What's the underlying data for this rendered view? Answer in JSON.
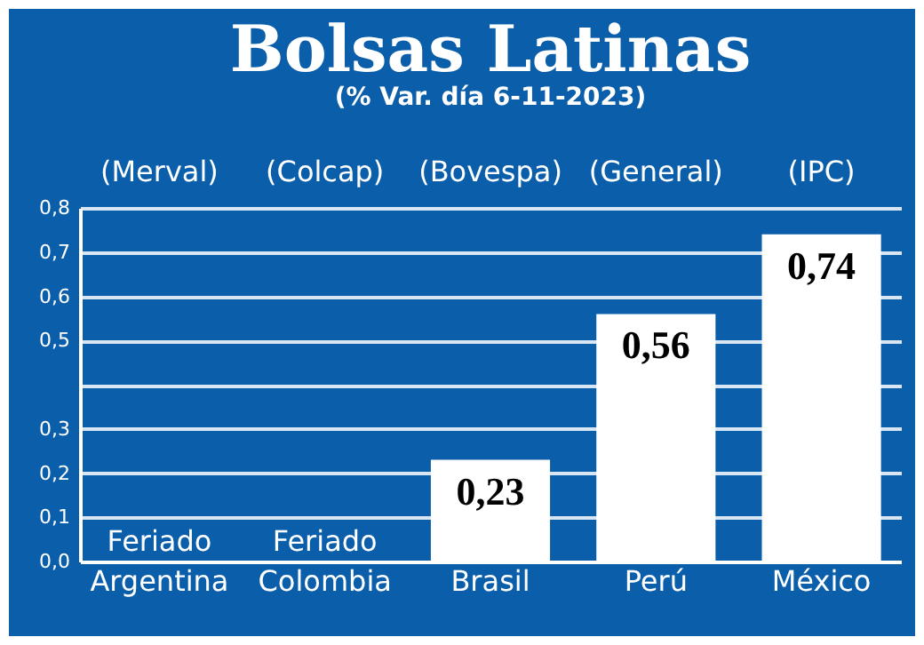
{
  "chart_data": {
    "type": "bar",
    "title": "Bolsas Latinas",
    "subtitle": "(% Var. día  6-11-2023)",
    "categories": [
      "Argentina",
      "Colombia",
      "Brasil",
      "Perú",
      "México"
    ],
    "values": [
      null,
      null,
      0.23,
      0.56,
      0.74
    ],
    "value_labels": [
      "Feriado",
      "Feriado",
      "0,23",
      "0,56",
      "0,74"
    ],
    "color": "#ffffff",
    "ylim": [
      0,
      0.8
    ],
    "yticks": [
      {
        "value": 0,
        "label": "0,0"
      },
      {
        "value": 0.1,
        "label": "0,1"
      },
      {
        "value": 0.2,
        "label": "0,2"
      },
      {
        "value": 0.3,
        "label": "0,3"
      },
      {
        "value": 0.4,
        "label": null
      },
      {
        "value": 0.5,
        "label": "0,5"
      },
      {
        "value": 0.6,
        "label": "0,6"
      },
      {
        "value": 0.7,
        "label": "0,7"
      },
      {
        "value": 0.8,
        "label": "0,8"
      }
    ],
    "grid": true,
    "annotations": [
      "(Merval)",
      "(Colcap)",
      "(Bovespa)",
      "(General)",
      "(IPC)"
    ]
  }
}
